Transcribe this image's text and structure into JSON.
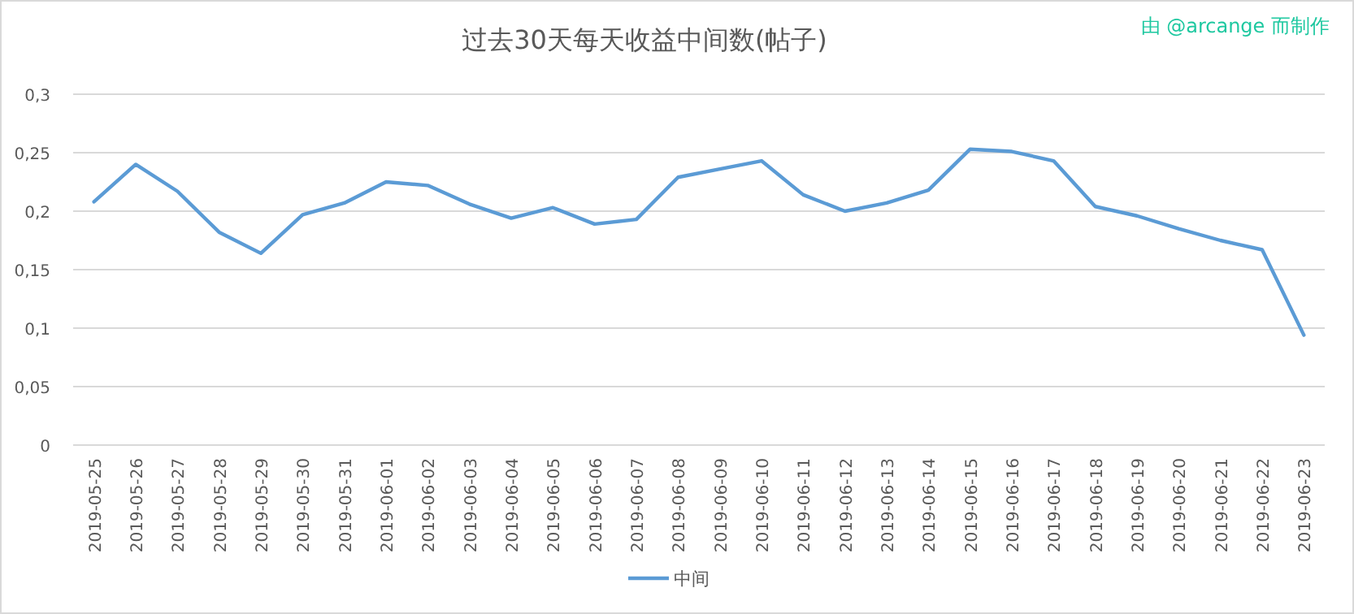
{
  "chart_data": {
    "type": "line",
    "title": "过去30天每天收益中间数(帖子)",
    "annotations": [
      "由 @arcange 而制作"
    ],
    "categories": [
      "2019-05-25",
      "2019-05-26",
      "2019-05-27",
      "2019-05-28",
      "2019-05-29",
      "2019-05-30",
      "2019-05-31",
      "2019-06-01",
      "2019-06-02",
      "2019-06-03",
      "2019-06-04",
      "2019-06-05",
      "2019-06-06",
      "2019-06-07",
      "2019-06-08",
      "2019-06-09",
      "2019-06-10",
      "2019-06-11",
      "2019-06-12",
      "2019-06-13",
      "2019-06-14",
      "2019-06-15",
      "2019-06-16",
      "2019-06-17",
      "2019-06-18",
      "2019-06-19",
      "2019-06-20",
      "2019-06-21",
      "2019-06-22",
      "2019-06-23"
    ],
    "series": [
      {
        "name": "中间",
        "color": "#5b9bd5",
        "values": [
          0.208,
          0.24,
          0.217,
          0.182,
          0.164,
          0.197,
          0.207,
          0.225,
          0.222,
          0.206,
          0.194,
          0.203,
          0.189,
          0.193,
          0.229,
          0.236,
          0.243,
          0.214,
          0.2,
          0.207,
          0.218,
          0.253,
          0.251,
          0.243,
          0.204,
          0.196,
          0.185,
          0.175,
          0.167,
          0.094
        ]
      }
    ],
    "ylim": [
      0,
      0.3
    ],
    "yticks": [
      0,
      {
        "value": 0.05,
        "label": "0,05"
      },
      {
        "value": 0.1,
        "label": "0,1"
      },
      {
        "value": 0.15,
        "label": "0,15"
      },
      {
        "value": 0.2,
        "label": "0,2"
      },
      {
        "value": 0.25,
        "label": "0,25"
      },
      {
        "value": 0.3,
        "label": "0,3"
      }
    ],
    "grid": "y",
    "legend": "bottom",
    "marker": "none",
    "line_style": "solid"
  }
}
